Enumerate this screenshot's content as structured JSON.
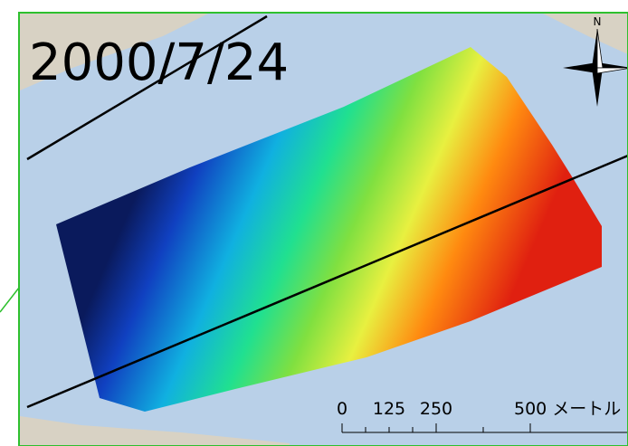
{
  "map": {
    "date": "2000/7/24",
    "north": "N",
    "scale": {
      "labels": [
        "0",
        "125",
        "250",
        "500 メートル"
      ]
    }
  }
}
